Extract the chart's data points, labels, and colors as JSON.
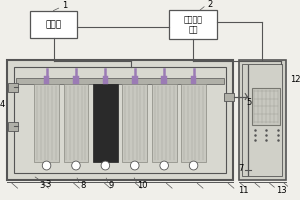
{
  "bg_color": "#f0efea",
  "white": "#ffffff",
  "box1_label": "进水箱",
  "box2_label": "自动控制\n装置",
  "label1": "1",
  "label2": "2",
  "label3": "3",
  "label4": "4",
  "label5": "5",
  "label7": "7",
  "label8": "8",
  "label9": "9",
  "label10": "10",
  "label11": "11",
  "label12": "12",
  "label13": "13",
  "mc": "#555555",
  "purple": "#9B7BB5",
  "light_gray": "#c8c8c0",
  "med_gray": "#b0b0a8",
  "dark_elem": "#2a2a2a",
  "reactor_fill": "#d8d8d0",
  "tank_fill": "#d0d0c8"
}
